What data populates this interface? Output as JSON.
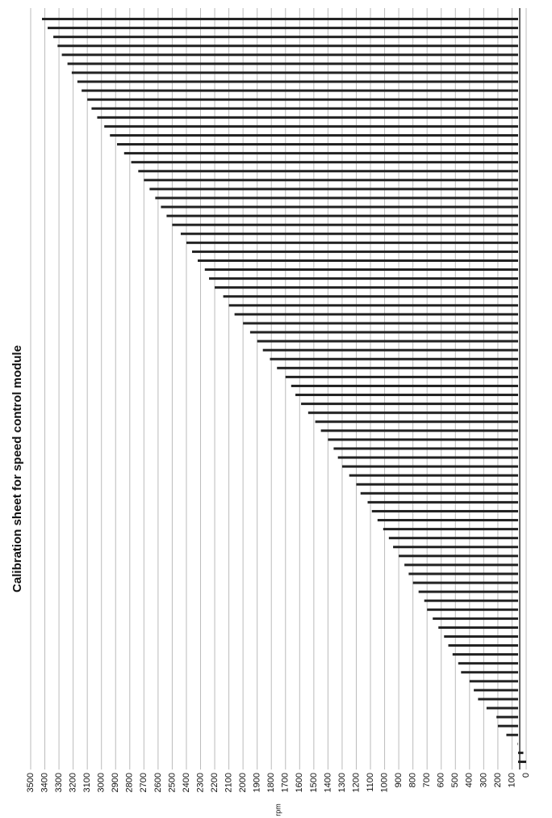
{
  "chart_data": {
    "type": "bar",
    "orientation": "horizontal",
    "title": "Calibration sheet for speed control module",
    "x_label": "rpm",
    "categories": [
      null,
      null,
      null,
      null,
      null,
      null,
      null,
      null,
      null,
      null,
      null,
      null,
      null,
      null,
      null,
      null,
      null,
      null,
      null,
      null,
      null,
      null,
      null,
      null,
      null,
      null,
      null,
      null,
      null,
      null,
      null,
      null,
      null,
      null,
      null,
      null,
      null,
      null,
      null,
      null,
      null,
      null,
      null,
      null,
      null,
      null,
      null,
      null,
      null,
      null,
      null,
      null,
      null,
      null,
      null,
      null,
      null,
      null,
      null,
      null,
      null,
      null,
      null,
      null,
      null,
      null,
      null,
      null,
      null,
      null,
      null,
      null,
      null,
      null,
      null,
      null,
      null,
      null,
      null,
      null,
      null,
      null,
      null,
      null
    ],
    "values": [
      0,
      20,
      60,
      140,
      200,
      210,
      280,
      340,
      370,
      400,
      460,
      480,
      520,
      550,
      580,
      620,
      660,
      700,
      720,
      760,
      800,
      830,
      860,
      900,
      940,
      970,
      1010,
      1050,
      1090,
      1120,
      1170,
      1200,
      1250,
      1300,
      1330,
      1360,
      1400,
      1450,
      1490,
      1540,
      1590,
      1630,
      1660,
      1700,
      1760,
      1810,
      1860,
      1900,
      1950,
      2000,
      2060,
      2100,
      2140,
      2200,
      2240,
      2270,
      2320,
      2360,
      2400,
      2440,
      2500,
      2540,
      2580,
      2620,
      2660,
      2700,
      2740,
      2790,
      2840,
      2890,
      2940,
      2980,
      3030,
      3070,
      3100,
      3140,
      3170,
      3210,
      3240,
      3280,
      3310,
      3340,
      3380,
      3420
    ],
    "color": "#222222",
    "xlim": [
      0,
      3500
    ],
    "xticks": [
      0,
      100,
      200,
      300,
      400,
      500,
      600,
      700,
      800,
      900,
      1000,
      1100,
      1200,
      1300,
      1400,
      1500,
      1600,
      1700,
      1800,
      1900,
      2000,
      2100,
      2200,
      2300,
      2400,
      2500,
      2600,
      2700,
      2800,
      2900,
      3000,
      3100,
      3200,
      3300,
      3400,
      3500
    ],
    "grid": true
  }
}
